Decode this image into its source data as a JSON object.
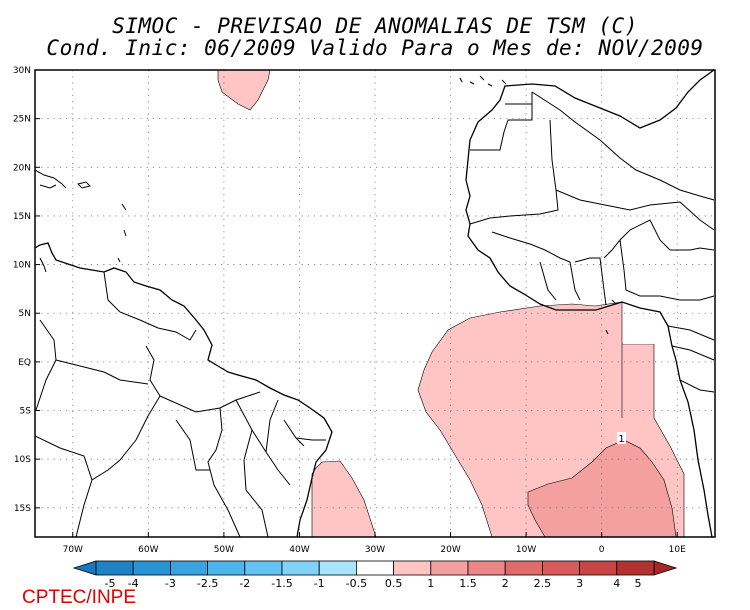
{
  "title": {
    "line1": "SIMOC - PREVISAO DE ANOMALIAS DE TSM (C)",
    "line2": "Cond. Inic: 06/2009   Valido Para o Mes de: NOV/2009"
  },
  "map": {
    "lon_range": [
      -75,
      15
    ],
    "lat_range": [
      -18,
      30
    ],
    "lat_labels": [
      {
        "lat": 30,
        "label": "30N"
      },
      {
        "lat": 25,
        "label": "25N"
      },
      {
        "lat": 20,
        "label": "20N"
      },
      {
        "lat": 15,
        "label": "15N"
      },
      {
        "lat": 10,
        "label": "10N"
      },
      {
        "lat": 5,
        "label": "5N"
      },
      {
        "lat": 0,
        "label": "EQ"
      },
      {
        "lat": -5,
        "label": "5S"
      },
      {
        "lat": -10,
        "label": "10S"
      },
      {
        "lat": -15,
        "label": "15S"
      }
    ],
    "lon_labels": [
      {
        "lon": -70,
        "label": "70W"
      },
      {
        "lon": -60,
        "label": "60W"
      },
      {
        "lon": -50,
        "label": "50W"
      },
      {
        "lon": -40,
        "label": "40W"
      },
      {
        "lon": -30,
        "label": "30W"
      },
      {
        "lon": -20,
        "label": "20W"
      },
      {
        "lon": -10,
        "label": "10W"
      },
      {
        "lon": 0,
        "label": "0"
      },
      {
        "lon": 10,
        "label": "10E"
      }
    ],
    "contour_label": "1",
    "colors": {
      "anomaly_0_5_1": "#ffc4c4",
      "anomaly_1_1_5": "#f5a0a0",
      "land_outline": "#000000",
      "grid": "#777777"
    }
  },
  "colorbar": {
    "labels": [
      "-5",
      "-4",
      "-3",
      "-2.5",
      "-2",
      "-1.5",
      "-1",
      "-0.5",
      "0.5",
      "1",
      "1.5",
      "2",
      "2.5",
      "3",
      "4",
      "5"
    ],
    "colors": [
      "#1f82c4",
      "#2a93d3",
      "#3aa3e0",
      "#4cb3eb",
      "#62c3f3",
      "#80d3f7",
      "#a8e5fb",
      "#ffffff",
      "#ffc4c4",
      "#f5a0a0",
      "#ec8787",
      "#e06b6b",
      "#d85a5a",
      "#c84545",
      "#b23232"
    ],
    "end_left_color": "#1976c0",
    "end_right_color": "#a82828"
  },
  "footer": {
    "credit": "CPTEC/INPE"
  }
}
